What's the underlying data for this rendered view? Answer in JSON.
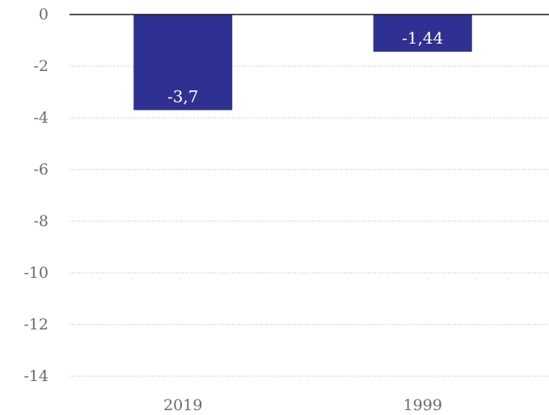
{
  "chart_data": {
    "type": "bar",
    "categories": [
      "2019",
      "1999"
    ],
    "values": [
      -3.7,
      -1.44
    ],
    "value_labels": [
      "-3,7",
      "-1,44"
    ],
    "ylim": [
      -14,
      0
    ],
    "yticks": [
      0,
      -2,
      -4,
      -6,
      -8,
      -10,
      -12,
      -14
    ],
    "ytick_labels": [
      "0",
      "-2",
      "-4",
      "-6",
      "-8",
      "-10",
      "-12",
      "-14"
    ],
    "grid": true,
    "bar_color": "#2e3191",
    "title": "",
    "xlabel": "",
    "ylabel": ""
  }
}
